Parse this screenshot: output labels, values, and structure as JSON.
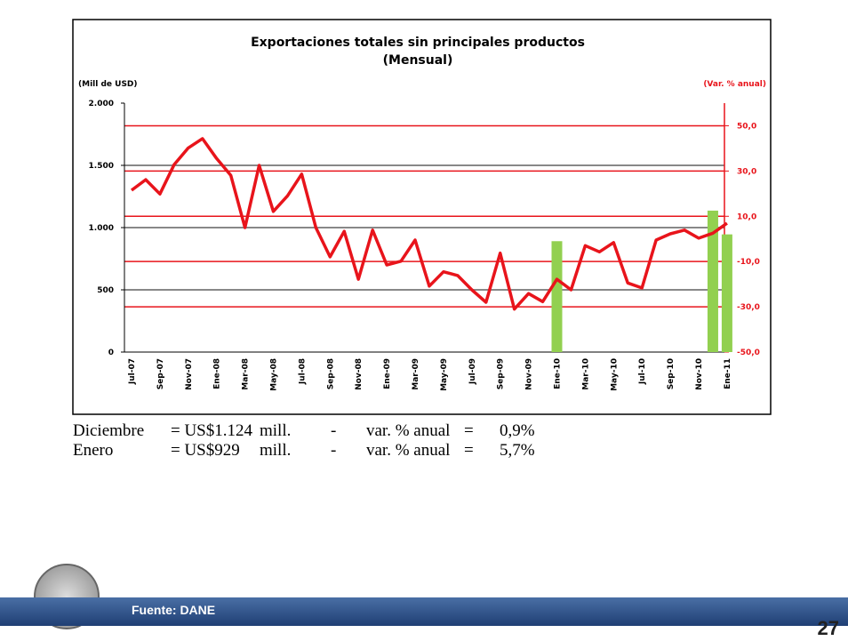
{
  "chart_data": {
    "type": "line",
    "title": "Exportaciones totales sin principales productos",
    "subtitle": "(Mensual)",
    "y_label": "(Mill de USD)",
    "y2_label": "(Var. % anual)",
    "categories": [
      "Jul-07",
      null,
      "Sep-07",
      null,
      "Nov-07",
      null,
      "Ene-08",
      null,
      "Mar-08",
      null,
      "May-08",
      null,
      "Jul-08",
      null,
      "Sep-08",
      null,
      "Nov-08",
      null,
      "Ene-09",
      null,
      "Mar-09",
      null,
      "May-09",
      null,
      "Jul-09",
      null,
      "Sep-09",
      null,
      "Nov-09",
      null,
      "Ene-10",
      null,
      "Mar-10",
      null,
      "May-10",
      null,
      "Jul-10",
      null,
      "Sep-10",
      null,
      "Nov-10",
      null,
      "Ene-11"
    ],
    "series": [
      {
        "type": "line",
        "color": "#e8141b",
        "axis": "y",
        "values": [
          1300,
          1385,
          1270,
          1505,
          1640,
          1715,
          1555,
          1420,
          1000,
          1500,
          1130,
          1255,
          1430,
          1000,
          765,
          970,
          585,
          980,
          700,
          730,
          900,
          530,
          645,
          615,
          500,
          400,
          795,
          345,
          470,
          405,
          585,
          500,
          855,
          805,
          880,
          555,
          515,
          900,
          950,
          980,
          915,
          955,
          1035
        ]
      },
      {
        "type": "bar",
        "color": "#92d050",
        "axis": "y2",
        "values": [
          null,
          null,
          null,
          null,
          null,
          null,
          null,
          null,
          null,
          null,
          null,
          null,
          null,
          null,
          null,
          null,
          null,
          null,
          null,
          null,
          null,
          null,
          null,
          null,
          null,
          null,
          null,
          null,
          null,
          null,
          -1,
          null,
          null,
          null,
          null,
          null,
          null,
          null,
          null,
          null,
          null,
          12.5,
          2
        ]
      }
    ],
    "ylim": [
      0,
      2000
    ],
    "yticks": [
      {
        "value": 0,
        "label": "0"
      },
      {
        "value": 500,
        "label": "500"
      },
      {
        "value": 1000,
        "label": "1.000"
      },
      {
        "value": 1500,
        "label": "1.500"
      },
      {
        "value": 2000,
        "label": "2.000"
      }
    ],
    "y2lim": [
      -50,
      60
    ],
    "y2ticks": [
      {
        "value": 50,
        "label": "50,0"
      },
      {
        "value": 30,
        "label": "30,0"
      },
      {
        "value": 10,
        "label": "10,0"
      },
      {
        "value": -10,
        "label": "-10,0"
      },
      {
        "value": -30,
        "label": "-30,0"
      },
      {
        "value": -50,
        "label": "-50,0"
      }
    ],
    "grid": true,
    "y2_color": "#e8141b"
  },
  "slide": {
    "notes": [
      [
        "Diciembre",
        "= US$1.124",
        "mill.",
        "-",
        "var. % anual",
        "=",
        "0,9%"
      ],
      [
        "Enero",
        "= US$929",
        "mill.",
        "-",
        "var. % anual",
        "=",
        "5,7%"
      ]
    ],
    "source": "Fuente: DANE",
    "page": "27"
  }
}
